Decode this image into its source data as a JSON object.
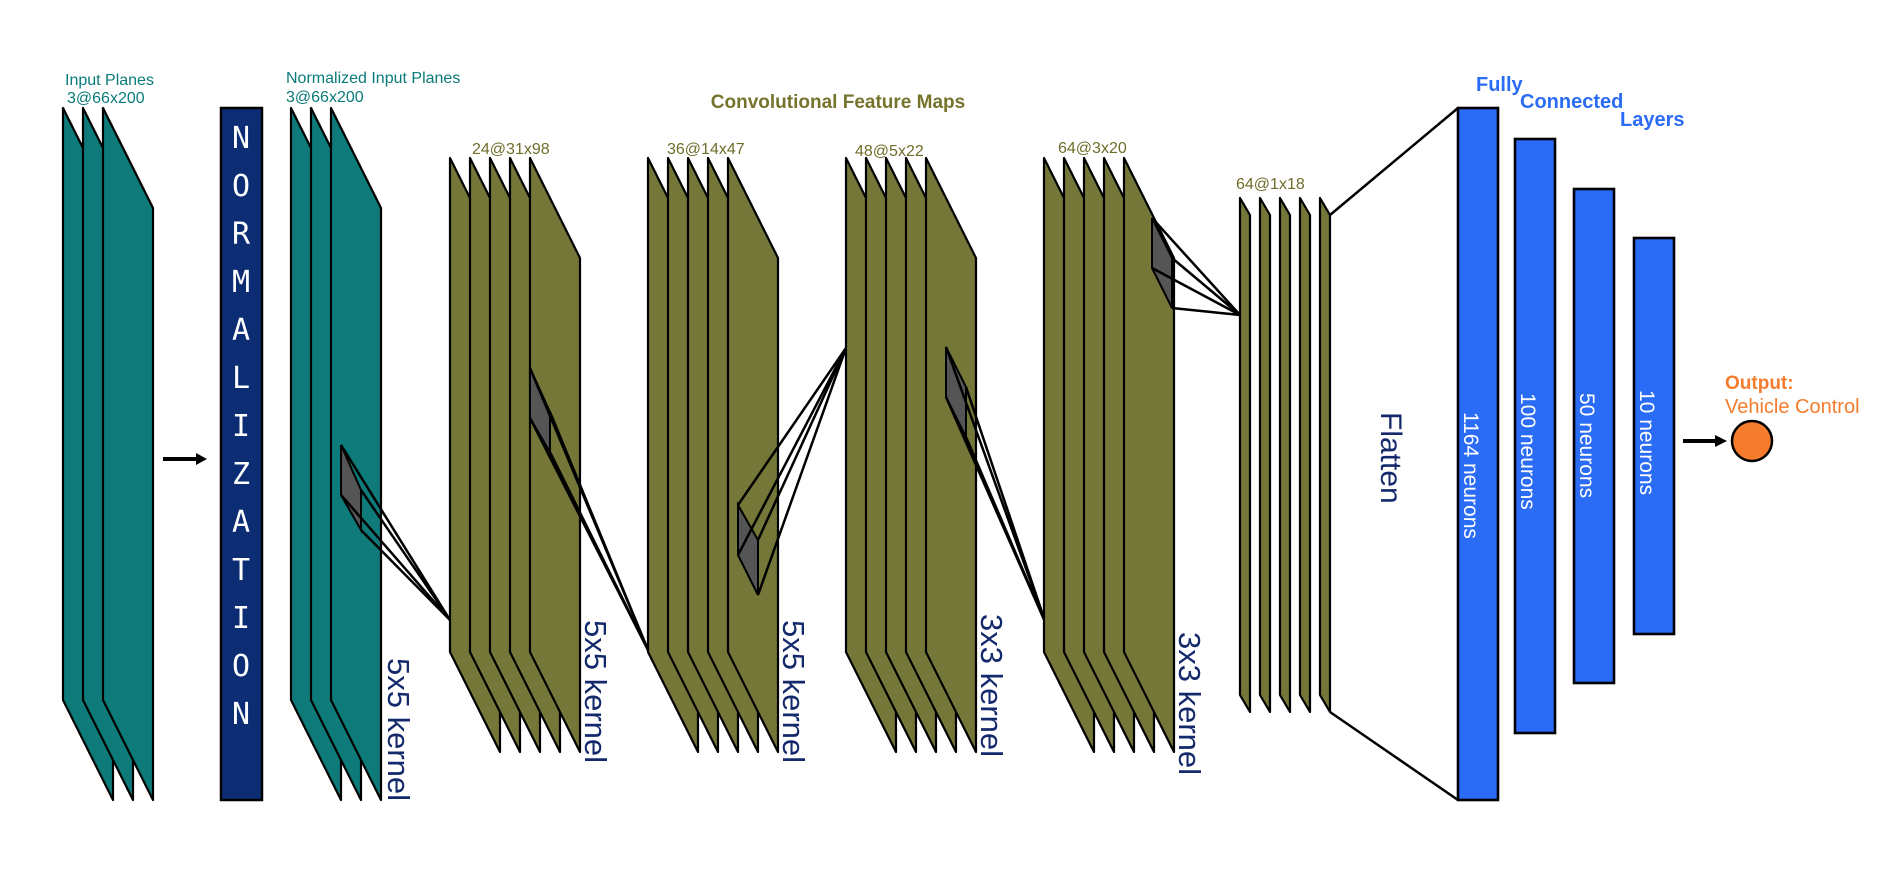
{
  "input": {
    "title": "Input Planes",
    "dims": "3@66x200"
  },
  "normalization": {
    "letters": [
      "N",
      "O",
      "R",
      "M",
      "A",
      "L",
      "I",
      "Z",
      "A",
      "T",
      "I",
      "O",
      "N"
    ]
  },
  "normalized": {
    "title": "Normalized Input Planes",
    "dims": "3@66x200"
  },
  "conv_title": "Convolutional Feature Maps",
  "maps": [
    "24@31x98",
    "36@14x47",
    "48@5x22",
    "64@3x20",
    "64@1x18"
  ],
  "kernels": [
    "5x5 kernel",
    "5x5 kernel",
    "5x5 kernel",
    "3x3 kernel",
    "3x3 kernel"
  ],
  "flatten": "Flatten",
  "fc_title": [
    "Fully",
    "Connected",
    "Layers"
  ],
  "fc_layers": [
    "1164 neurons",
    "100 neurons",
    "50 neurons",
    "10 neurons"
  ],
  "output": {
    "label_bold": "Output:",
    "label": "Vehicle Control"
  },
  "colors": {
    "teal": "#0e7a7a",
    "olive": "#757738",
    "navy": "#0c2d74",
    "fc_blue": "#2b6cf6",
    "output_orange": "#f47c2c"
  }
}
